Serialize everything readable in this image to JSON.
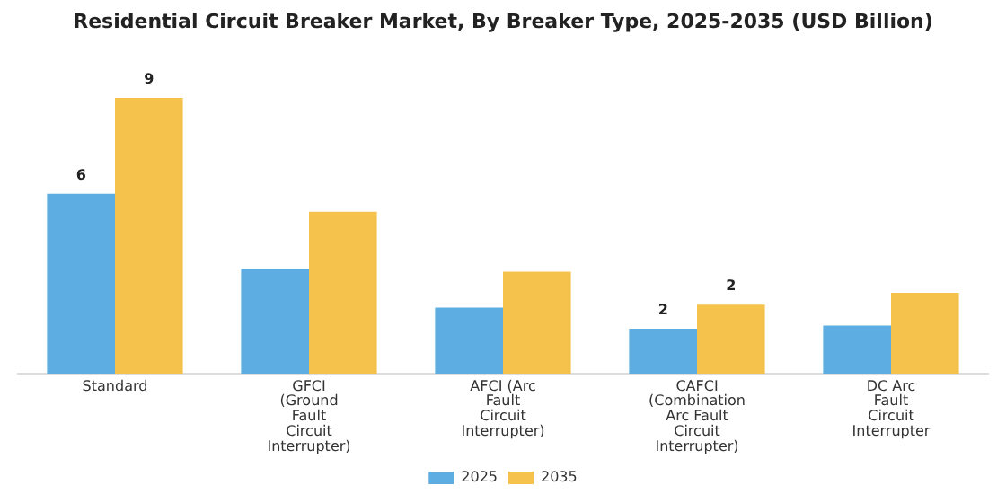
{
  "chart_data": {
    "type": "bar",
    "title": "Residential Circuit Breaker Market, By Breaker Type, 2025-2035 (USD Billion)",
    "categories": [
      "Standard",
      "GFCI (Ground Fault Circuit Interrupter)",
      "AFCI (Arc Fault Circuit Interrupter)",
      "CAFCI (Combination Arc Fault Circuit Interrupter)",
      "DC Arc Fault Circuit Interrupter"
    ],
    "series": [
      {
        "name": "2025",
        "color": "#5dade2",
        "values": [
          6,
          3.5,
          2.2,
          1.5,
          1.6
        ],
        "value_labels": [
          "6",
          null,
          null,
          "2",
          null
        ]
      },
      {
        "name": "2035",
        "color": "#f5c24c",
        "values": [
          9.2,
          5.4,
          3.4,
          2.3,
          2.7
        ],
        "value_labels": [
          "9",
          null,
          null,
          "2",
          null
        ]
      }
    ],
    "grid": false,
    "legend": "bottom"
  }
}
